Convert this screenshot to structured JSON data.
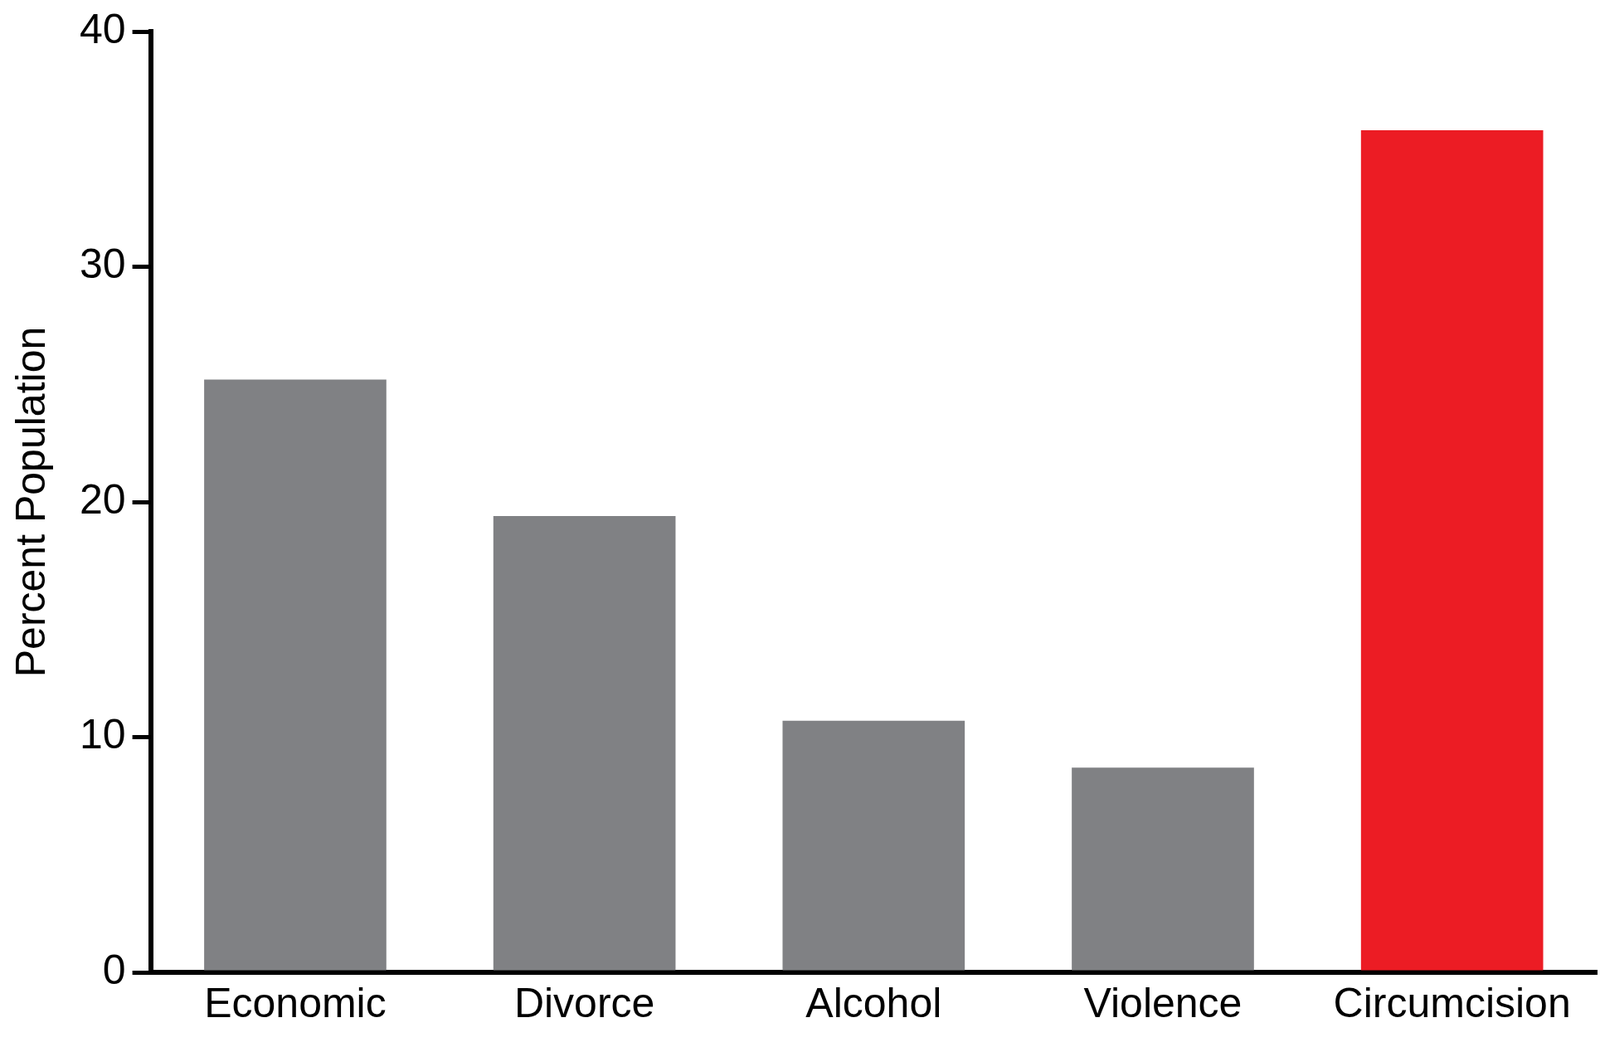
{
  "chart_data": {
    "type": "bar",
    "categories": [
      "Economic",
      "Divorce",
      "Alcohol",
      "Violence",
      "Circumcision"
    ],
    "values": [
      25.2,
      19.4,
      10.7,
      8.7,
      35.8
    ],
    "colors": [
      "#808184",
      "#808184",
      "#808184",
      "#808184",
      "#ec1c24"
    ],
    "y_label": "Percent Population",
    "ylim": [
      0,
      40
    ],
    "yticks": [
      0,
      10,
      20,
      30,
      40
    ],
    "grid": false
  }
}
